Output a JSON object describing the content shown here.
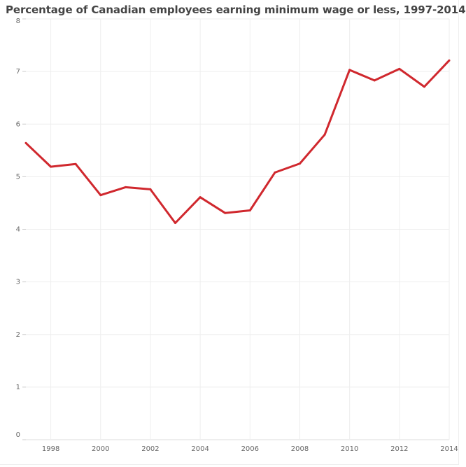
{
  "chart_data": {
    "type": "line",
    "title": "Percentage of Canadian employees earning minimum wage or less, 1997-2014",
    "xlabel": "",
    "ylabel": "",
    "x": [
      1997,
      1998,
      1999,
      2000,
      2001,
      2002,
      2003,
      2004,
      2005,
      2006,
      2007,
      2008,
      2009,
      2010,
      2011,
      2012,
      2013,
      2014
    ],
    "series": [
      {
        "values": [
          5.64,
          5.19,
          5.24,
          4.65,
          4.8,
          4.76,
          4.12,
          4.61,
          4.31,
          4.36,
          5.08,
          5.25,
          5.8,
          7.03,
          6.83,
          7.05,
          6.71,
          7.21
        ],
        "color": "#d0282e"
      }
    ],
    "xlim": [
      1997,
      2014
    ],
    "ylim": [
      0,
      8
    ],
    "x_ticks": [
      "1998",
      "2000",
      "2002",
      "2004",
      "2006",
      "2008",
      "2010",
      "2012",
      "2014"
    ],
    "y_ticks": [
      "0",
      "1",
      "2",
      "3",
      "4",
      "5",
      "6",
      "7",
      "8"
    ],
    "grid": true,
    "legend": "none"
  }
}
